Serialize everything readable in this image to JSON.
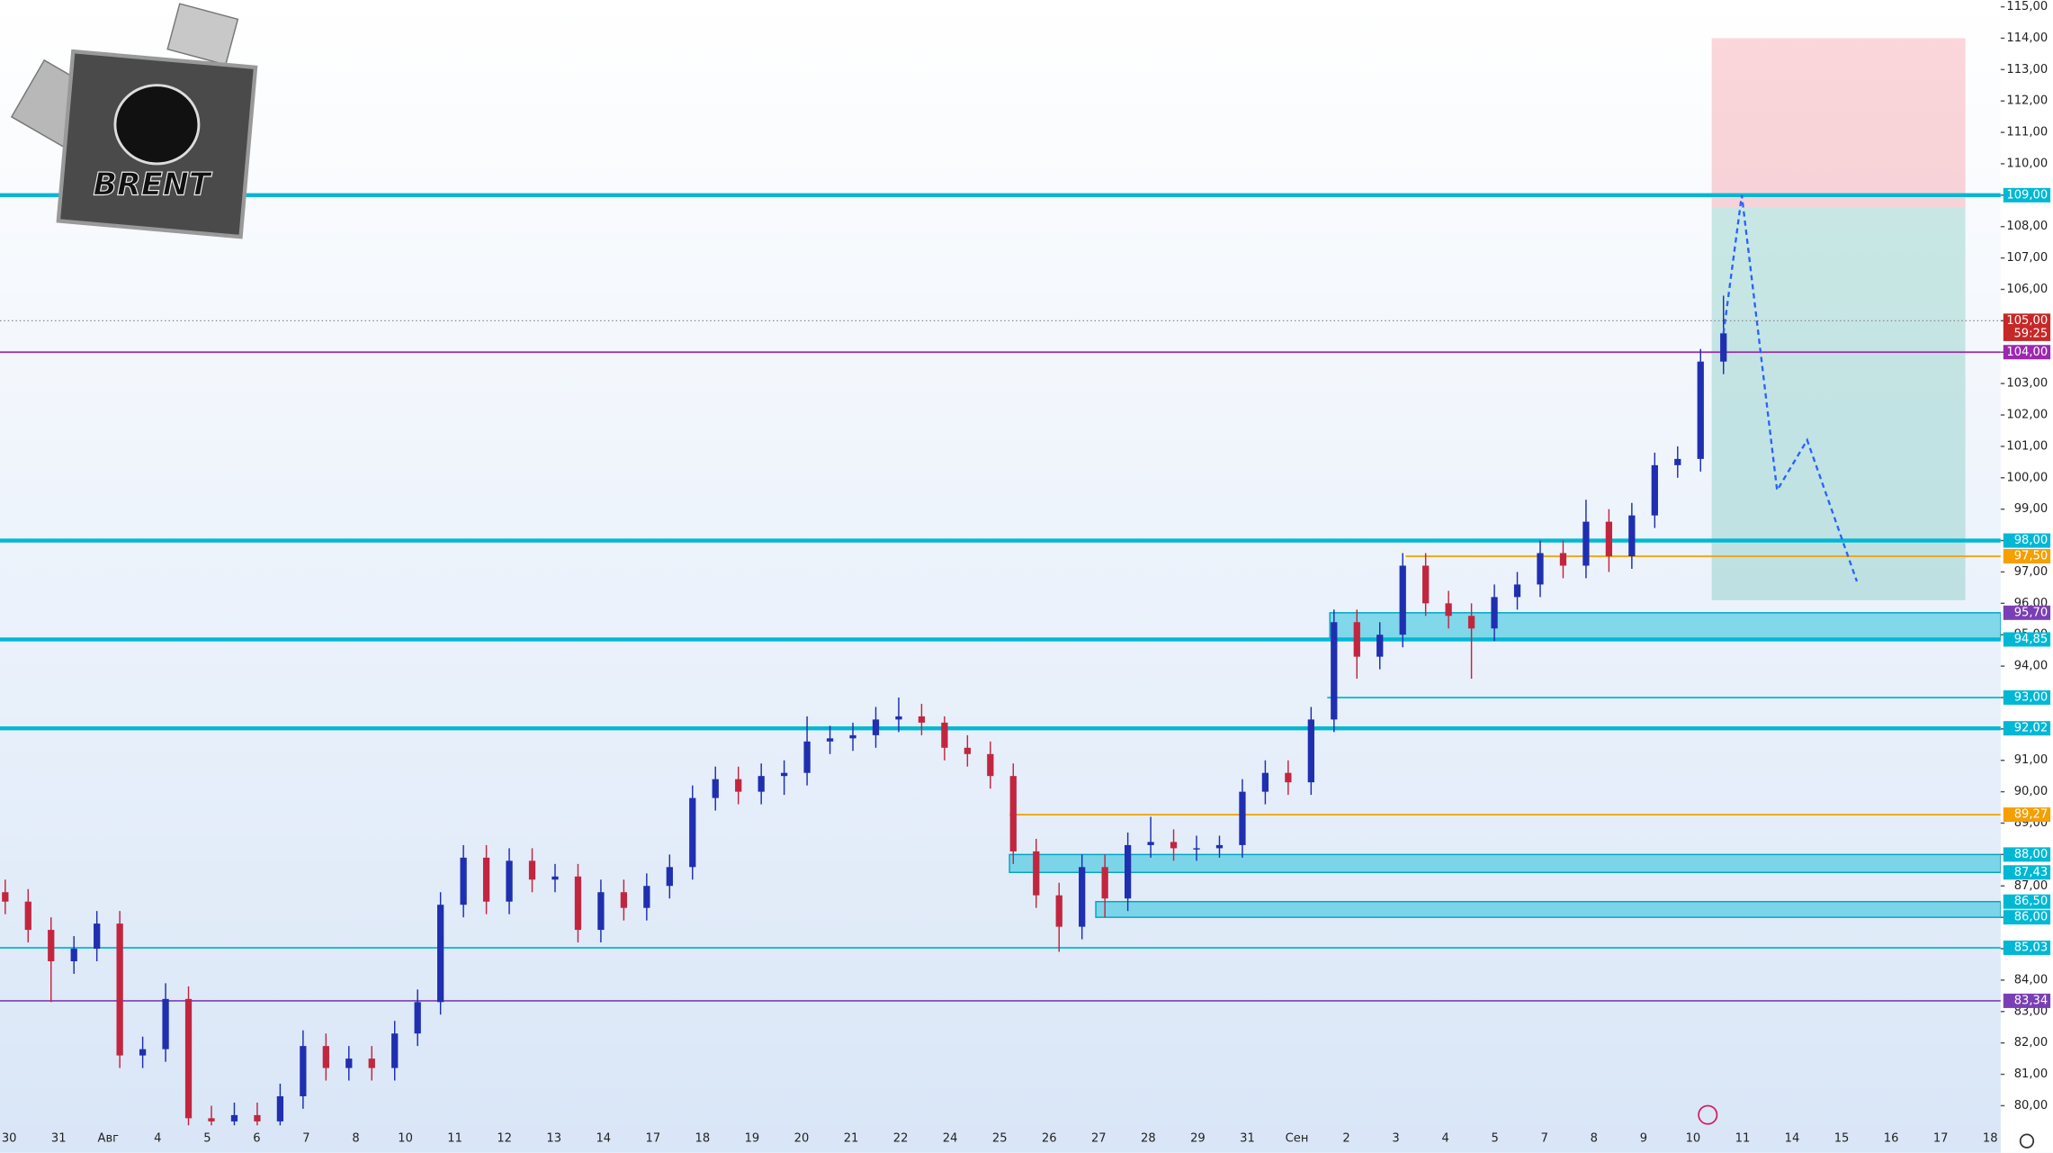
{
  "chart_data": {
    "type": "candlestick",
    "logo": "BRENT",
    "ylim": [
      79.375,
      115.21
    ],
    "yticks": [
      {
        "value": 80,
        "label": "80,00"
      },
      {
        "value": 81,
        "label": "81,00"
      },
      {
        "value": 82,
        "label": "82,00"
      },
      {
        "value": 83,
        "label": "83,00"
      },
      {
        "value": 84,
        "label": "84,00"
      },
      {
        "value": 85,
        "label": "85,00"
      },
      {
        "value": 86,
        "label": "86,00"
      },
      {
        "value": 87,
        "label": "87,00"
      },
      {
        "value": 88,
        "label": "88,00"
      },
      {
        "value": 89,
        "label": "89,00"
      },
      {
        "value": 90,
        "label": "90,00"
      },
      {
        "value": 91,
        "label": "91,00"
      },
      {
        "value": 92,
        "label": "92,00"
      },
      {
        "value": 93,
        "label": "93,00"
      },
      {
        "value": 94,
        "label": "94,00"
      },
      {
        "value": 95,
        "label": "95,00"
      },
      {
        "value": 96,
        "label": "96,00"
      },
      {
        "value": 97,
        "label": "97,00"
      },
      {
        "value": 98,
        "label": "98,00"
      },
      {
        "value": 99,
        "label": "99,00"
      },
      {
        "value": 100,
        "label": "100,00"
      },
      {
        "value": 101,
        "label": "101,00"
      },
      {
        "value": 102,
        "label": "102,00"
      },
      {
        "value": 103,
        "label": "103,00"
      },
      {
        "value": 104,
        "label": "104,00"
      },
      {
        "value": 105,
        "label": "105,00"
      },
      {
        "value": 106,
        "label": "106,00"
      },
      {
        "value": 107,
        "label": "107,00"
      },
      {
        "value": 108,
        "label": "108,00"
      },
      {
        "value": 109,
        "label": "109,00"
      },
      {
        "value": 110,
        "label": "110,00"
      },
      {
        "value": 111,
        "label": "111,00"
      },
      {
        "value": 112,
        "label": "112,00"
      },
      {
        "value": 113,
        "label": "113,00"
      },
      {
        "value": 114,
        "label": "114,00"
      },
      {
        "value": 115,
        "label": "115,00"
      }
    ],
    "categories": [
      "30",
      "31",
      "Авг",
      "4",
      "5",
      "6",
      "7",
      "8",
      "10",
      "11",
      "12",
      "13",
      "14",
      "17",
      "18",
      "19",
      "20",
      "21",
      "22",
      "24",
      "25",
      "26",
      "27",
      "28",
      "29",
      "31",
      "Сен",
      "2",
      "3",
      "4",
      "5",
      "7",
      "8",
      "9",
      "10",
      "11",
      "14",
      "15",
      "16",
      "17",
      "18"
    ],
    "up_color": "#1f2fb0",
    "down_color": "#c2263f",
    "candles": [
      [
        86.8,
        87.2,
        86.1,
        86.5
      ],
      [
        86.5,
        86.9,
        85.2,
        85.6
      ],
      [
        85.6,
        86.0,
        83.3,
        84.6
      ],
      [
        84.6,
        85.4,
        84.2,
        85.0
      ],
      [
        85.0,
        86.2,
        84.6,
        85.8
      ],
      [
        85.8,
        86.2,
        81.2,
        81.6
      ],
      [
        81.6,
        82.2,
        81.2,
        81.8
      ],
      [
        81.8,
        83.9,
        81.4,
        83.4
      ],
      [
        83.4,
        83.8,
        79.2,
        79.6
      ],
      [
        79.6,
        80.0,
        79.1,
        79.5
      ],
      [
        79.5,
        80.1,
        79.1,
        79.7
      ],
      [
        79.7,
        80.1,
        79.1,
        79.5
      ],
      [
        79.5,
        80.7,
        79.1,
        80.3
      ],
      [
        80.3,
        82.4,
        79.9,
        81.9
      ],
      [
        81.9,
        82.3,
        80.8,
        81.2
      ],
      [
        81.2,
        81.9,
        80.8,
        81.5
      ],
      [
        81.5,
        81.9,
        80.8,
        81.2
      ],
      [
        81.2,
        82.7,
        80.8,
        82.3
      ],
      [
        82.3,
        83.7,
        81.9,
        83.3
      ],
      [
        83.3,
        86.8,
        82.9,
        86.4
      ],
      [
        86.4,
        88.3,
        86.0,
        87.9
      ],
      [
        87.9,
        88.3,
        86.1,
        86.5
      ],
      [
        86.5,
        88.2,
        86.1,
        87.8
      ],
      [
        87.8,
        88.2,
        86.8,
        87.2
      ],
      [
        87.2,
        87.7,
        86.8,
        87.3
      ],
      [
        87.3,
        87.7,
        85.2,
        85.6
      ],
      [
        85.6,
        87.2,
        85.2,
        86.8
      ],
      [
        86.8,
        87.2,
        85.9,
        86.3
      ],
      [
        86.3,
        87.4,
        85.9,
        87.0
      ],
      [
        87.0,
        88.0,
        86.6,
        87.6
      ],
      [
        87.6,
        90.2,
        87.2,
        89.8
      ],
      [
        89.8,
        90.8,
        89.4,
        90.4
      ],
      [
        90.4,
        90.8,
        89.6,
        90.0
      ],
      [
        90.0,
        90.9,
        89.6,
        90.5
      ],
      [
        90.5,
        91.0,
        89.9,
        90.6
      ],
      [
        90.6,
        92.4,
        90.2,
        91.6
      ],
      [
        91.6,
        92.1,
        91.2,
        91.7
      ],
      [
        91.7,
        92.2,
        91.3,
        91.8
      ],
      [
        91.8,
        92.7,
        91.4,
        92.3
      ],
      [
        92.3,
        93.0,
        91.9,
        92.4
      ],
      [
        92.4,
        92.8,
        91.8,
        92.2
      ],
      [
        92.2,
        92.4,
        91.0,
        91.4
      ],
      [
        91.4,
        91.8,
        90.8,
        91.2
      ],
      [
        91.2,
        91.6,
        90.1,
        90.5
      ],
      [
        90.5,
        90.9,
        87.7,
        88.1
      ],
      [
        88.1,
        88.5,
        86.3,
        86.7
      ],
      [
        86.7,
        87.1,
        84.9,
        85.7
      ],
      [
        85.7,
        88.0,
        85.3,
        87.6
      ],
      [
        87.6,
        88.0,
        86.0,
        86.6
      ],
      [
        86.6,
        88.7,
        86.2,
        88.3
      ],
      [
        88.3,
        89.2,
        87.9,
        88.4
      ],
      [
        88.4,
        88.8,
        87.8,
        88.2
      ],
      [
        88.2,
        88.6,
        87.8,
        88.2
      ],
      [
        88.2,
        88.6,
        87.9,
        88.3
      ],
      [
        88.3,
        90.4,
        87.9,
        90.0
      ],
      [
        90.0,
        91.0,
        89.6,
        90.6
      ],
      [
        90.6,
        91.0,
        89.9,
        90.3
      ],
      [
        90.3,
        92.7,
        89.9,
        92.3
      ],
      [
        92.3,
        95.8,
        91.9,
        95.4
      ],
      [
        95.4,
        95.8,
        93.6,
        94.3
      ],
      [
        94.3,
        95.4,
        93.9,
        95.0
      ],
      [
        95.0,
        97.6,
        94.6,
        97.2
      ],
      [
        97.2,
        97.6,
        95.6,
        96.0
      ],
      [
        96.0,
        96.4,
        95.2,
        95.6
      ],
      [
        95.6,
        96.0,
        93.6,
        95.2
      ],
      [
        95.2,
        96.6,
        94.8,
        96.2
      ],
      [
        96.2,
        97.0,
        95.8,
        96.6
      ],
      [
        96.6,
        98.0,
        96.2,
        97.6
      ],
      [
        97.6,
        98.0,
        96.8,
        97.2
      ],
      [
        97.2,
        99.3,
        96.8,
        98.6
      ],
      [
        98.6,
        99.0,
        97.0,
        97.5
      ],
      [
        97.5,
        99.2,
        97.1,
        98.8
      ],
      [
        98.8,
        100.8,
        98.4,
        100.4
      ],
      [
        100.4,
        101.0,
        100.0,
        100.6
      ],
      [
        100.6,
        104.1,
        100.2,
        103.7
      ],
      [
        103.7,
        105.8,
        103.3,
        104.6
      ]
    ],
    "levels": [
      {
        "value": 109,
        "label": "109,00",
        "color": "#00b8d4",
        "width": 3
      },
      {
        "value": 104,
        "label": "104,00",
        "color": "#9c27b0",
        "width": 1.2
      },
      {
        "value": 98,
        "label": "98,00",
        "color": "#00b8d4",
        "width": 3
      },
      {
        "value": 97.5,
        "label": "97,50",
        "color": "#f59f00",
        "width": 1.2
      },
      {
        "value": 94.85,
        "label": "94,85",
        "color": "#00b8d4",
        "width": 3
      },
      {
        "value": 93,
        "label": "93,00",
        "color": "#00b8d4",
        "width": 1.2
      },
      {
        "value": 92.02,
        "label": "92,02",
        "color": "#00b8d4",
        "width": 3
      },
      {
        "value": 89.27,
        "label": "89,27",
        "color": "#f59f00",
        "width": 1.2
      },
      {
        "value": 85.03,
        "label": "85,03",
        "color": "#00b8d4",
        "width": 1.2
      },
      {
        "value": 83.34,
        "label": "83,34",
        "color": "#7b3fb5",
        "width": 1.2
      }
    ],
    "zones": [
      {
        "top": 95.7,
        "bottom": 94.85,
        "top_label": "95,70",
        "top_color": "#7b3fb5"
      },
      {
        "top": 88,
        "bottom": 87.43,
        "top_label": "88,00",
        "bottom_label": "87,43",
        "top_color": "#00b8d4"
      },
      {
        "top": 86.5,
        "bottom": 86,
        "top_label": "86,50",
        "bottom_label": "86,00",
        "top_color": "#00b8d4"
      }
    ],
    "position": {
      "stop": 114,
      "entry": 108.6,
      "target": 96.1
    },
    "projection": [
      104.6,
      109.0,
      99.6,
      101.2,
      96.7
    ],
    "current_price": {
      "value": 105,
      "label": "105,00",
      "countdown": "59:25",
      "color": "#c62828"
    }
  }
}
